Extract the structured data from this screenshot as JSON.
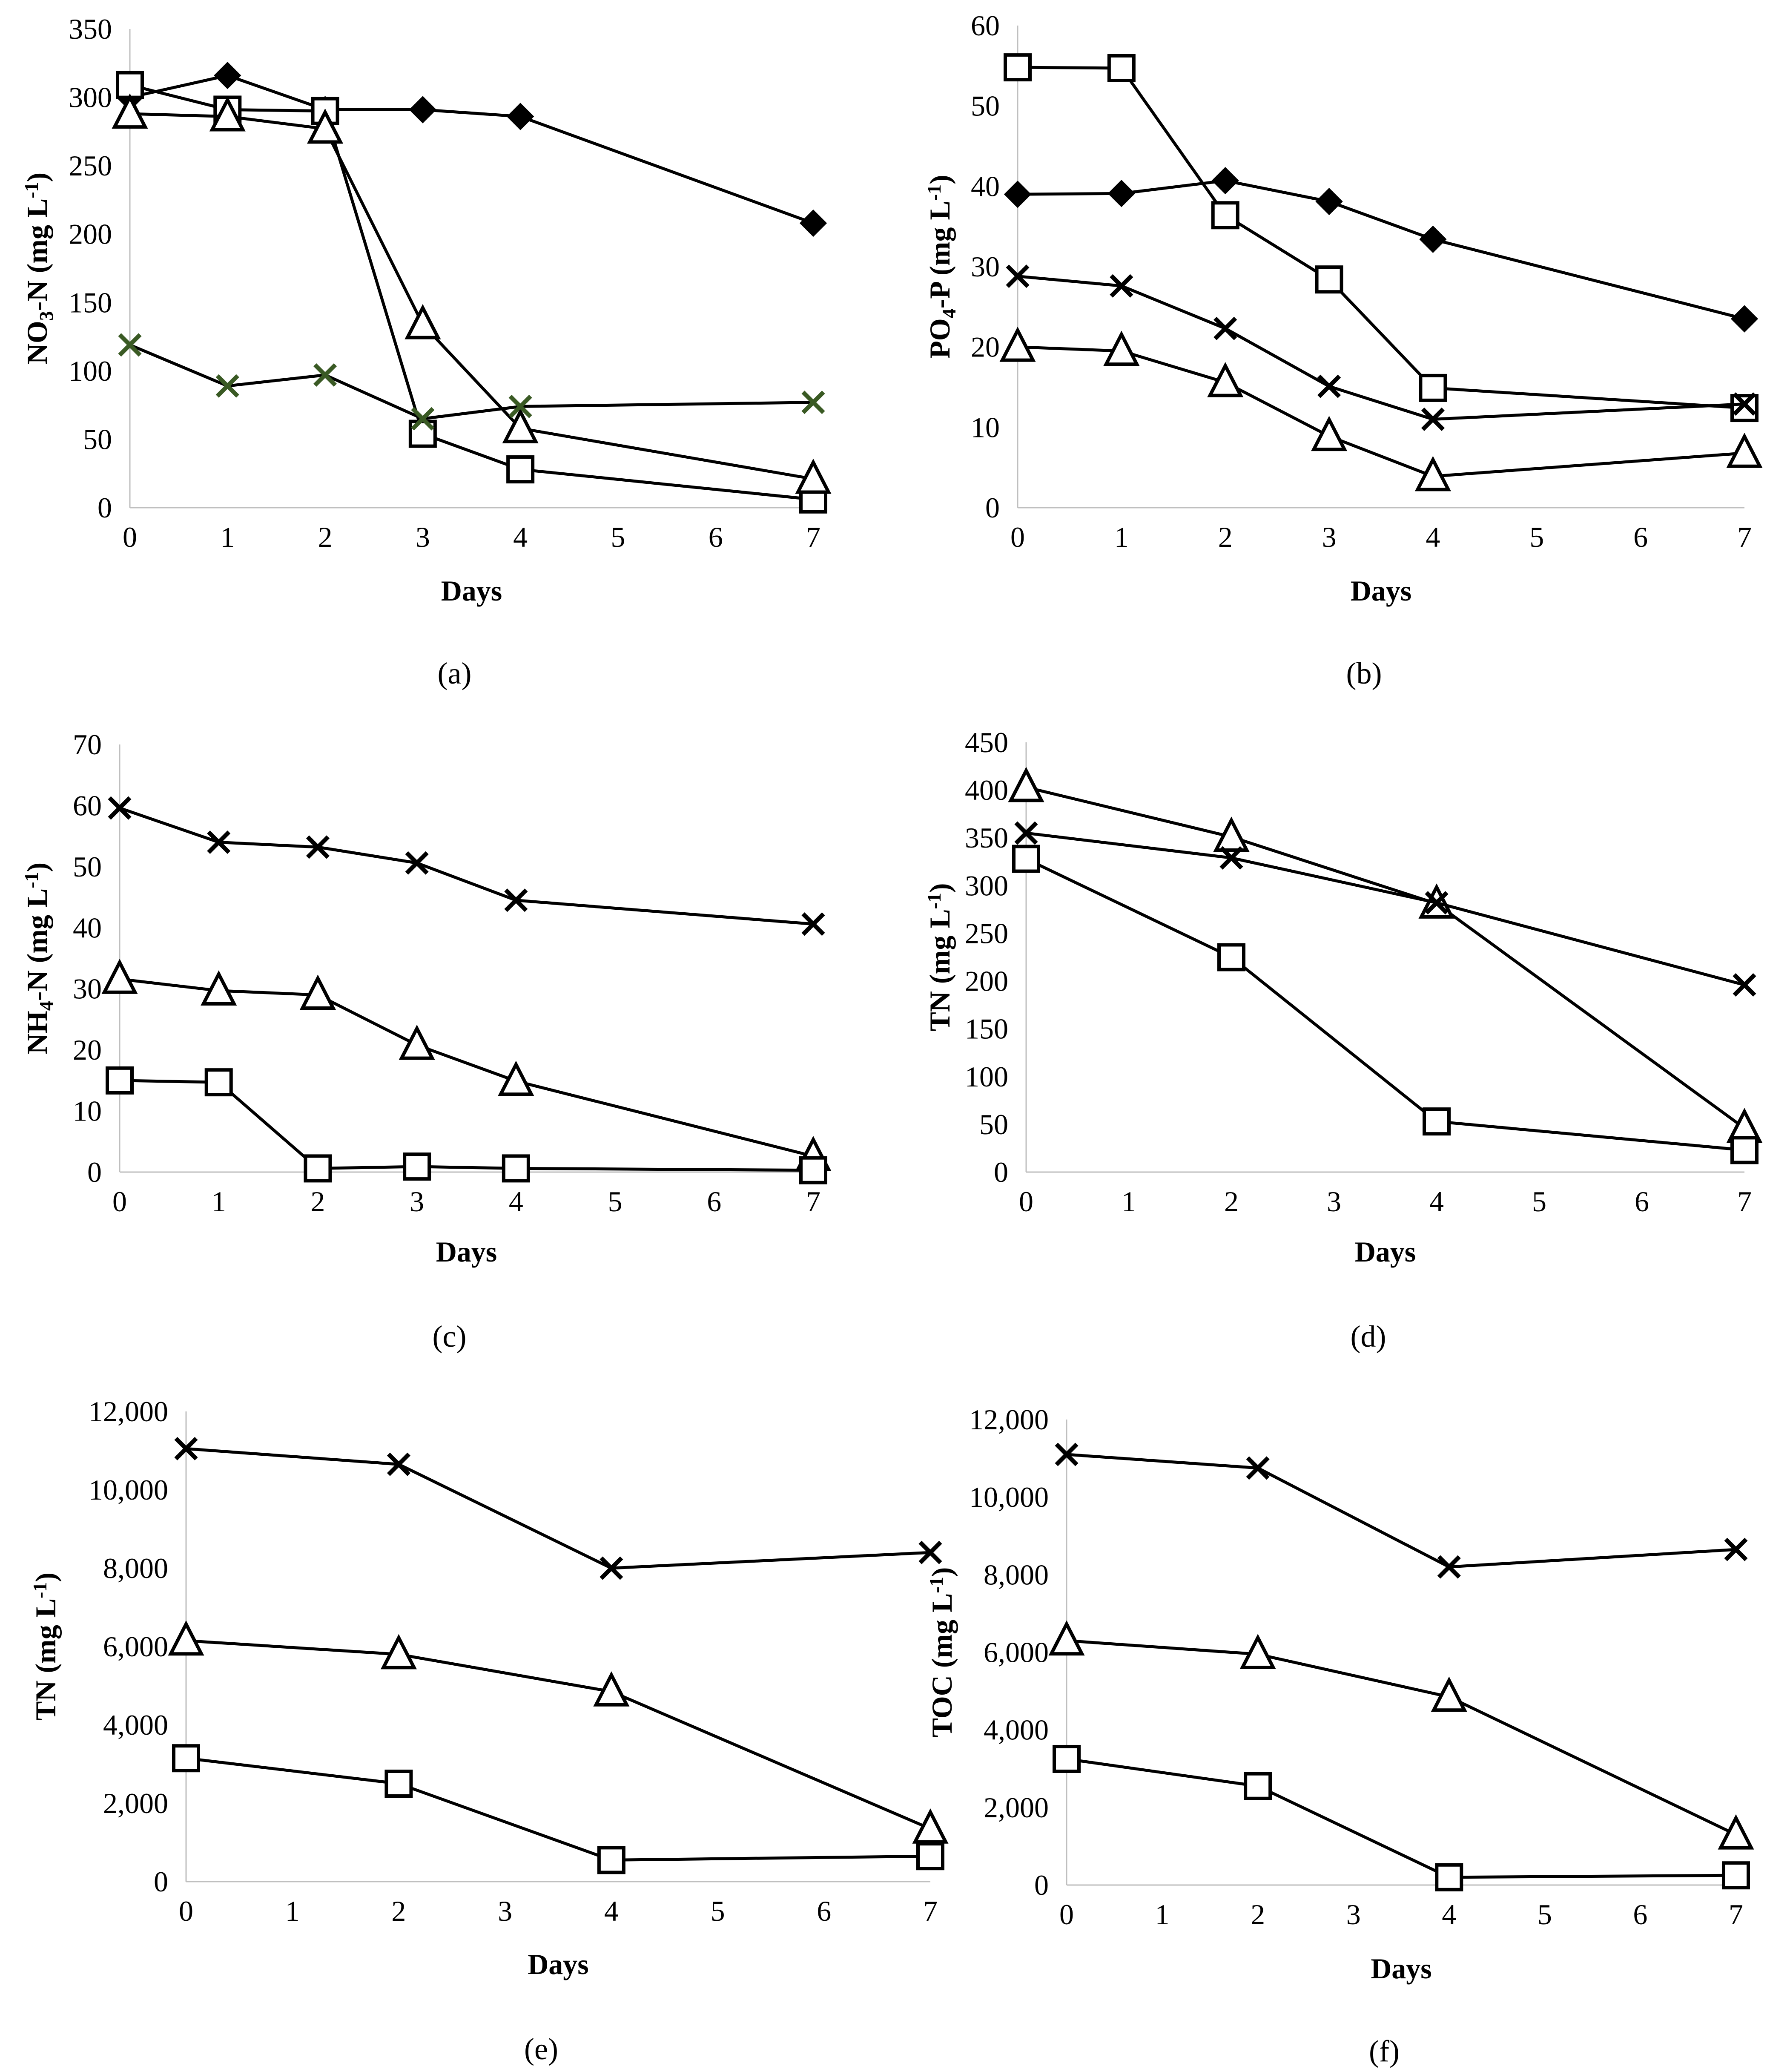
{
  "figure": {
    "panels": [
      "a",
      "b",
      "c",
      "d",
      "e",
      "f"
    ]
  },
  "chart_data": [
    {
      "id": "a",
      "type": "line",
      "label": "(a)",
      "ylabel_main": "NO",
      "ylabel_sub": "3",
      "ylabel_rest": "-N (mg L",
      "ylabel_sup": "-1",
      "ylabel_end": ")",
      "xlabel": "Days",
      "xlim": [
        0,
        7
      ],
      "ylim": [
        0,
        350
      ],
      "xticks": [
        "0",
        "1",
        "2",
        "3",
        "4",
        "5",
        "6",
        "7"
      ],
      "yticks": [
        "0",
        "50",
        "100",
        "150",
        "200",
        "250",
        "300",
        "350"
      ],
      "series": [
        {
          "marker": "diamond",
          "color": "#000000",
          "x": [
            0,
            1,
            2,
            3,
            4,
            7
          ],
          "values": [
            300,
            316,
            291,
            291,
            286,
            208
          ]
        },
        {
          "marker": "square",
          "color": "#000000",
          "x": [
            0,
            1,
            2,
            3,
            4,
            7
          ],
          "values": [
            309,
            291,
            290,
            54,
            28,
            6
          ]
        },
        {
          "marker": "triangle",
          "color": "#000000",
          "x": [
            0,
            1,
            2,
            3,
            4,
            7
          ],
          "values": [
            288,
            286,
            277,
            134,
            58,
            21
          ]
        },
        {
          "marker": "x",
          "color": "#3a5a24",
          "line_color": "#000000",
          "x": [
            0,
            1,
            2,
            3,
            4,
            7
          ],
          "values": [
            119,
            89,
            97,
            65,
            74,
            77
          ]
        }
      ]
    },
    {
      "id": "b",
      "type": "line",
      "label": "(b)",
      "ylabel_main": "PO",
      "ylabel_sub": "4",
      "ylabel_rest": "-P (mg L",
      "ylabel_sup": "-1",
      "ylabel_end": ")",
      "xlabel": "Days",
      "xlim": [
        0,
        7
      ],
      "ylim": [
        0,
        60
      ],
      "xticks": [
        "0",
        "1",
        "2",
        "3",
        "4",
        "5",
        "6",
        "7"
      ],
      "yticks": [
        "0",
        "10",
        "20",
        "30",
        "40",
        "50",
        "60"
      ],
      "series": [
        {
          "marker": "square",
          "color": "#000000",
          "x": [
            0,
            1,
            2,
            3,
            4,
            7
          ],
          "values": [
            54.8,
            54.7,
            36.4,
            28.4,
            14.9,
            12.4
          ]
        },
        {
          "marker": "diamond",
          "color": "#000000",
          "x": [
            0,
            1,
            2,
            3,
            4,
            7
          ],
          "values": [
            39.0,
            39.1,
            40.7,
            38.1,
            33.4,
            23.5
          ]
        },
        {
          "marker": "x",
          "color": "#000000",
          "x": [
            0,
            1,
            2,
            3,
            4,
            7
          ],
          "values": [
            28.8,
            27.6,
            22.3,
            15.1,
            11.0,
            12.9
          ]
        },
        {
          "marker": "triangle",
          "color": "#000000",
          "x": [
            0,
            1,
            2,
            3,
            4,
            7
          ],
          "values": [
            20.0,
            19.5,
            15.6,
            8.9,
            3.9,
            6.8
          ]
        }
      ]
    },
    {
      "id": "c",
      "type": "line",
      "label": "(c)",
      "ylabel_main": "NH",
      "ylabel_sub": "4",
      "ylabel_rest": "-N (mg L",
      "ylabel_sup": "-1",
      "ylabel_end": ")",
      "xlabel": "Days",
      "xlim": [
        0,
        7
      ],
      "ylim": [
        0,
        70
      ],
      "xticks": [
        "0",
        "1",
        "2",
        "3",
        "4",
        "5",
        "6",
        "7"
      ],
      "yticks": [
        "0",
        "10",
        "20",
        "30",
        "40",
        "50",
        "60",
        "70"
      ],
      "series": [
        {
          "marker": "x",
          "color": "#000000",
          "x": [
            0,
            1,
            2,
            3,
            4,
            7
          ],
          "values": [
            59.6,
            54.0,
            53.2,
            50.6,
            44.5,
            40.6
          ]
        },
        {
          "marker": "triangle",
          "color": "#000000",
          "x": [
            0,
            1,
            2,
            3,
            4,
            7
          ],
          "values": [
            31.6,
            29.7,
            29.0,
            20.8,
            14.9,
            2.6
          ]
        },
        {
          "marker": "square",
          "color": "#000000",
          "x": [
            0,
            1,
            2,
            3,
            4,
            7
          ],
          "values": [
            15.0,
            14.7,
            0.6,
            0.9,
            0.6,
            0.3
          ]
        }
      ]
    },
    {
      "id": "d",
      "type": "line",
      "label": "(d)",
      "ylabel_main": "TN (mg L",
      "ylabel_sub": "",
      "ylabel_rest": "",
      "ylabel_sup": "-1",
      "ylabel_end": ")",
      "xlabel": "Days",
      "xlim": [
        0,
        7
      ],
      "ylim": [
        0,
        450
      ],
      "xticks": [
        "0",
        "1",
        "2",
        "3",
        "4",
        "5",
        "6",
        "7"
      ],
      "yticks": [
        "0",
        "50",
        "100",
        "150",
        "200",
        "250",
        "300",
        "350",
        "400",
        "450"
      ],
      "series": [
        {
          "marker": "triangle",
          "color": "#000000",
          "x": [
            0,
            2,
            4,
            7
          ],
          "values": [
            403,
            351,
            281,
            46
          ]
        },
        {
          "marker": "x",
          "color": "#000000",
          "x": [
            0,
            2,
            4,
            7
          ],
          "values": [
            355,
            329,
            282,
            196
          ]
        },
        {
          "marker": "square",
          "color": "#000000",
          "x": [
            0,
            2,
            4,
            7
          ],
          "values": [
            328,
            225,
            53,
            23
          ]
        }
      ]
    },
    {
      "id": "e",
      "type": "line",
      "label": "(e)",
      "ylabel_main": "TN (mg L",
      "ylabel_sub": "",
      "ylabel_rest": "",
      "ylabel_sup": "-1",
      "ylabel_end": ")",
      "xlabel": "Days",
      "xlim": [
        0,
        7
      ],
      "ylim": [
        0,
        12000
      ],
      "xticks": [
        "0",
        "1",
        "2",
        "3",
        "4",
        "5",
        "6",
        "7"
      ],
      "yticks": [
        "0",
        "2,000",
        "4,000",
        "6,000",
        "8,000",
        "10,000",
        "12,000"
      ],
      "series": [
        {
          "marker": "x",
          "color": "#000000",
          "x": [
            0,
            2,
            4,
            7
          ],
          "values": [
            11050,
            10650,
            8000,
            8400
          ]
        },
        {
          "marker": "triangle",
          "color": "#000000",
          "x": [
            0,
            2,
            4,
            7
          ],
          "values": [
            6150,
            5800,
            4850,
            1350
          ]
        },
        {
          "marker": "square",
          "color": "#000000",
          "x": [
            0,
            2,
            4,
            7
          ],
          "values": [
            3150,
            2500,
            550,
            650
          ]
        }
      ]
    },
    {
      "id": "f",
      "type": "line",
      "label": "(f)",
      "ylabel_main": "TOC (mg L",
      "ylabel_sub": "",
      "ylabel_rest": "",
      "ylabel_sup": "-1",
      "ylabel_end": ")",
      "xlabel": "Days",
      "xlim": [
        0,
        7
      ],
      "ylim": [
        0,
        12000
      ],
      "xticks": [
        "0",
        "1",
        "2",
        "3",
        "4",
        "5",
        "6",
        "7"
      ],
      "yticks": [
        "0",
        "2,000",
        "4,000",
        "6,000",
        "8,000",
        "10,000",
        "12,000"
      ],
      "series": [
        {
          "marker": "x",
          "color": "#000000",
          "x": [
            0,
            2,
            4,
            7
          ],
          "values": [
            11100,
            10750,
            8200,
            8650
          ]
        },
        {
          "marker": "triangle",
          "color": "#000000",
          "x": [
            0,
            2,
            4,
            7
          ],
          "values": [
            6300,
            5950,
            4850,
            1300
          ]
        },
        {
          "marker": "square",
          "color": "#000000",
          "x": [
            0,
            2,
            4,
            7
          ],
          "values": [
            3250,
            2550,
            200,
            250
          ]
        }
      ]
    }
  ]
}
